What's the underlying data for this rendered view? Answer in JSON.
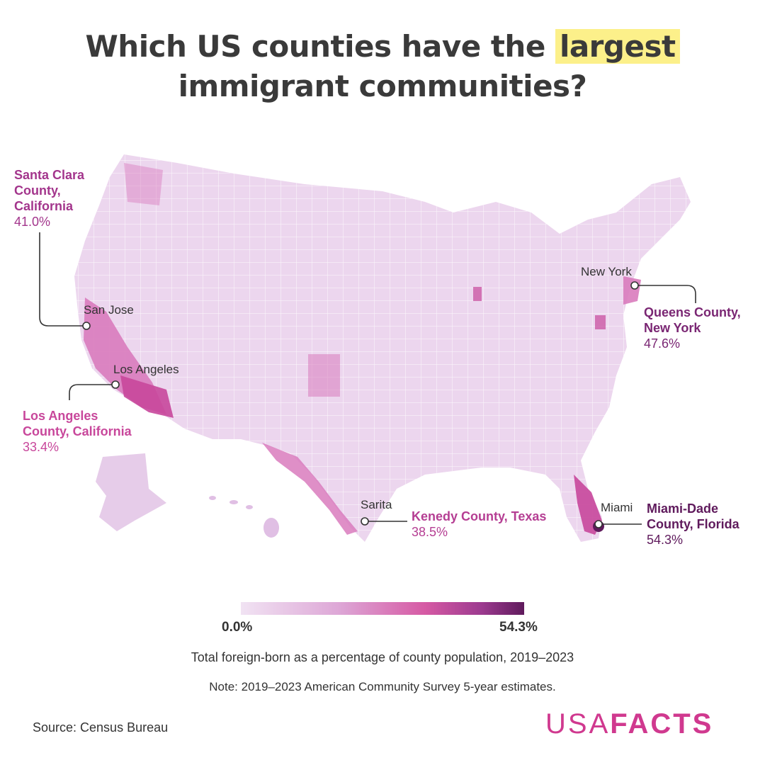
{
  "title": {
    "line1_pre": "Which US counties have the ",
    "line1_highlight": "largest",
    "line2": "immigrant communities?"
  },
  "callouts": {
    "santa_clara": {
      "name_l1": "Santa Clara",
      "name_l2": "County,",
      "name_l3": "California",
      "pct": "41.0%",
      "color": "#a3358c"
    },
    "los_angeles": {
      "name_l1": "Los Angeles",
      "name_l2": "County, California",
      "pct": "33.4%",
      "color": "#c8479b"
    },
    "kenedy": {
      "name": "Kenedy County, Texas",
      "pct": "38.5%",
      "color": "#b53e93"
    },
    "queens": {
      "name_l1": "Queens County,",
      "name_l2": "New York",
      "pct": "47.6%",
      "color": "#7a2673"
    },
    "miami_dade": {
      "name_l1": "Miami-Dade",
      "name_l2": "County, Florida",
      "pct": "54.3%",
      "color": "#5f1a5c"
    }
  },
  "cities": {
    "san_jose": "San Jose",
    "los_angeles": "Los Angeles",
    "sarita": "Sarita",
    "new_york": "New York",
    "miami": "Miami"
  },
  "legend": {
    "min": "0.0%",
    "max": "54.3%",
    "caption": "Total foreign-born as a percentage of county population, 2019–2023",
    "colors": [
      "#f1e3f3",
      "#dda6d6",
      "#d65aa4",
      "#9c3a8f",
      "#5f1a5c"
    ]
  },
  "note": "Note: 2019–2023 American Community Survey 5-year estimates.",
  "source": "Source: Census Bureau",
  "logo": {
    "light": "USA",
    "bold": "FACTS"
  }
}
